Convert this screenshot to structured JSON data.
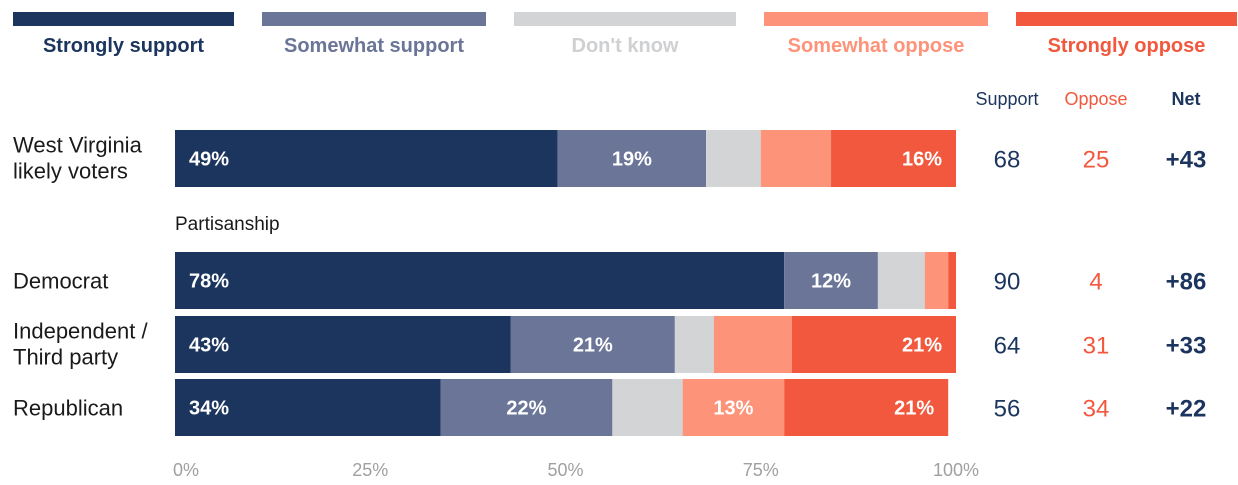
{
  "colors": {
    "strongly_support": "#1c355e",
    "somewhat_support": "#6a7597",
    "dont_know": "#d3d4d6",
    "somewhat_oppose": "#fd9379",
    "strongly_oppose": "#f2583e",
    "dont_know_text": "#cfd0d2",
    "net": "#1c355e"
  },
  "chart_data": {
    "type": "bar",
    "orientation": "horizontal",
    "stacked": true,
    "xlim": [
      0,
      100
    ],
    "x_ticks": [
      "0%",
      "25%",
      "50%",
      "75%",
      "100%"
    ],
    "legend_position": "top",
    "series": [
      {
        "name": "Strongly support",
        "values": [
          49,
          78,
          43,
          34
        ]
      },
      {
        "name": "Somewhat support",
        "values": [
          19,
          12,
          21,
          22
        ]
      },
      {
        "name": "Don't know",
        "values": [
          7,
          6,
          5,
          9
        ]
      },
      {
        "name": "Somewhat oppose",
        "values": [
          9,
          3,
          10,
          13
        ]
      },
      {
        "name": "Strongly oppose",
        "values": [
          16,
          1,
          21,
          21
        ]
      }
    ],
    "segment_labels": [
      [
        "49%",
        "19%",
        "",
        "",
        "16%"
      ],
      [
        "78%",
        "12%",
        "",
        "",
        ""
      ],
      [
        "43%",
        "21%",
        "",
        "",
        "21%"
      ],
      [
        "34%",
        "22%",
        "",
        "13%",
        "21%"
      ]
    ],
    "rows": [
      {
        "label_lines": [
          "West Virginia",
          "likely voters"
        ],
        "support": "68",
        "oppose": "25",
        "net": "+43"
      },
      {
        "label_lines": [
          "Democrat"
        ],
        "support": "90",
        "oppose": "4",
        "net": "+86"
      },
      {
        "label_lines": [
          "Independent /",
          "Third party"
        ],
        "support": "64",
        "oppose": "31",
        "net": "+33"
      },
      {
        "label_lines": [
          "Republican"
        ],
        "support": "56",
        "oppose": "34",
        "net": "+22"
      }
    ],
    "group_heading": "Partisanship",
    "summary_headers": {
      "support": "Support",
      "oppose": "Oppose",
      "net": "Net"
    }
  }
}
